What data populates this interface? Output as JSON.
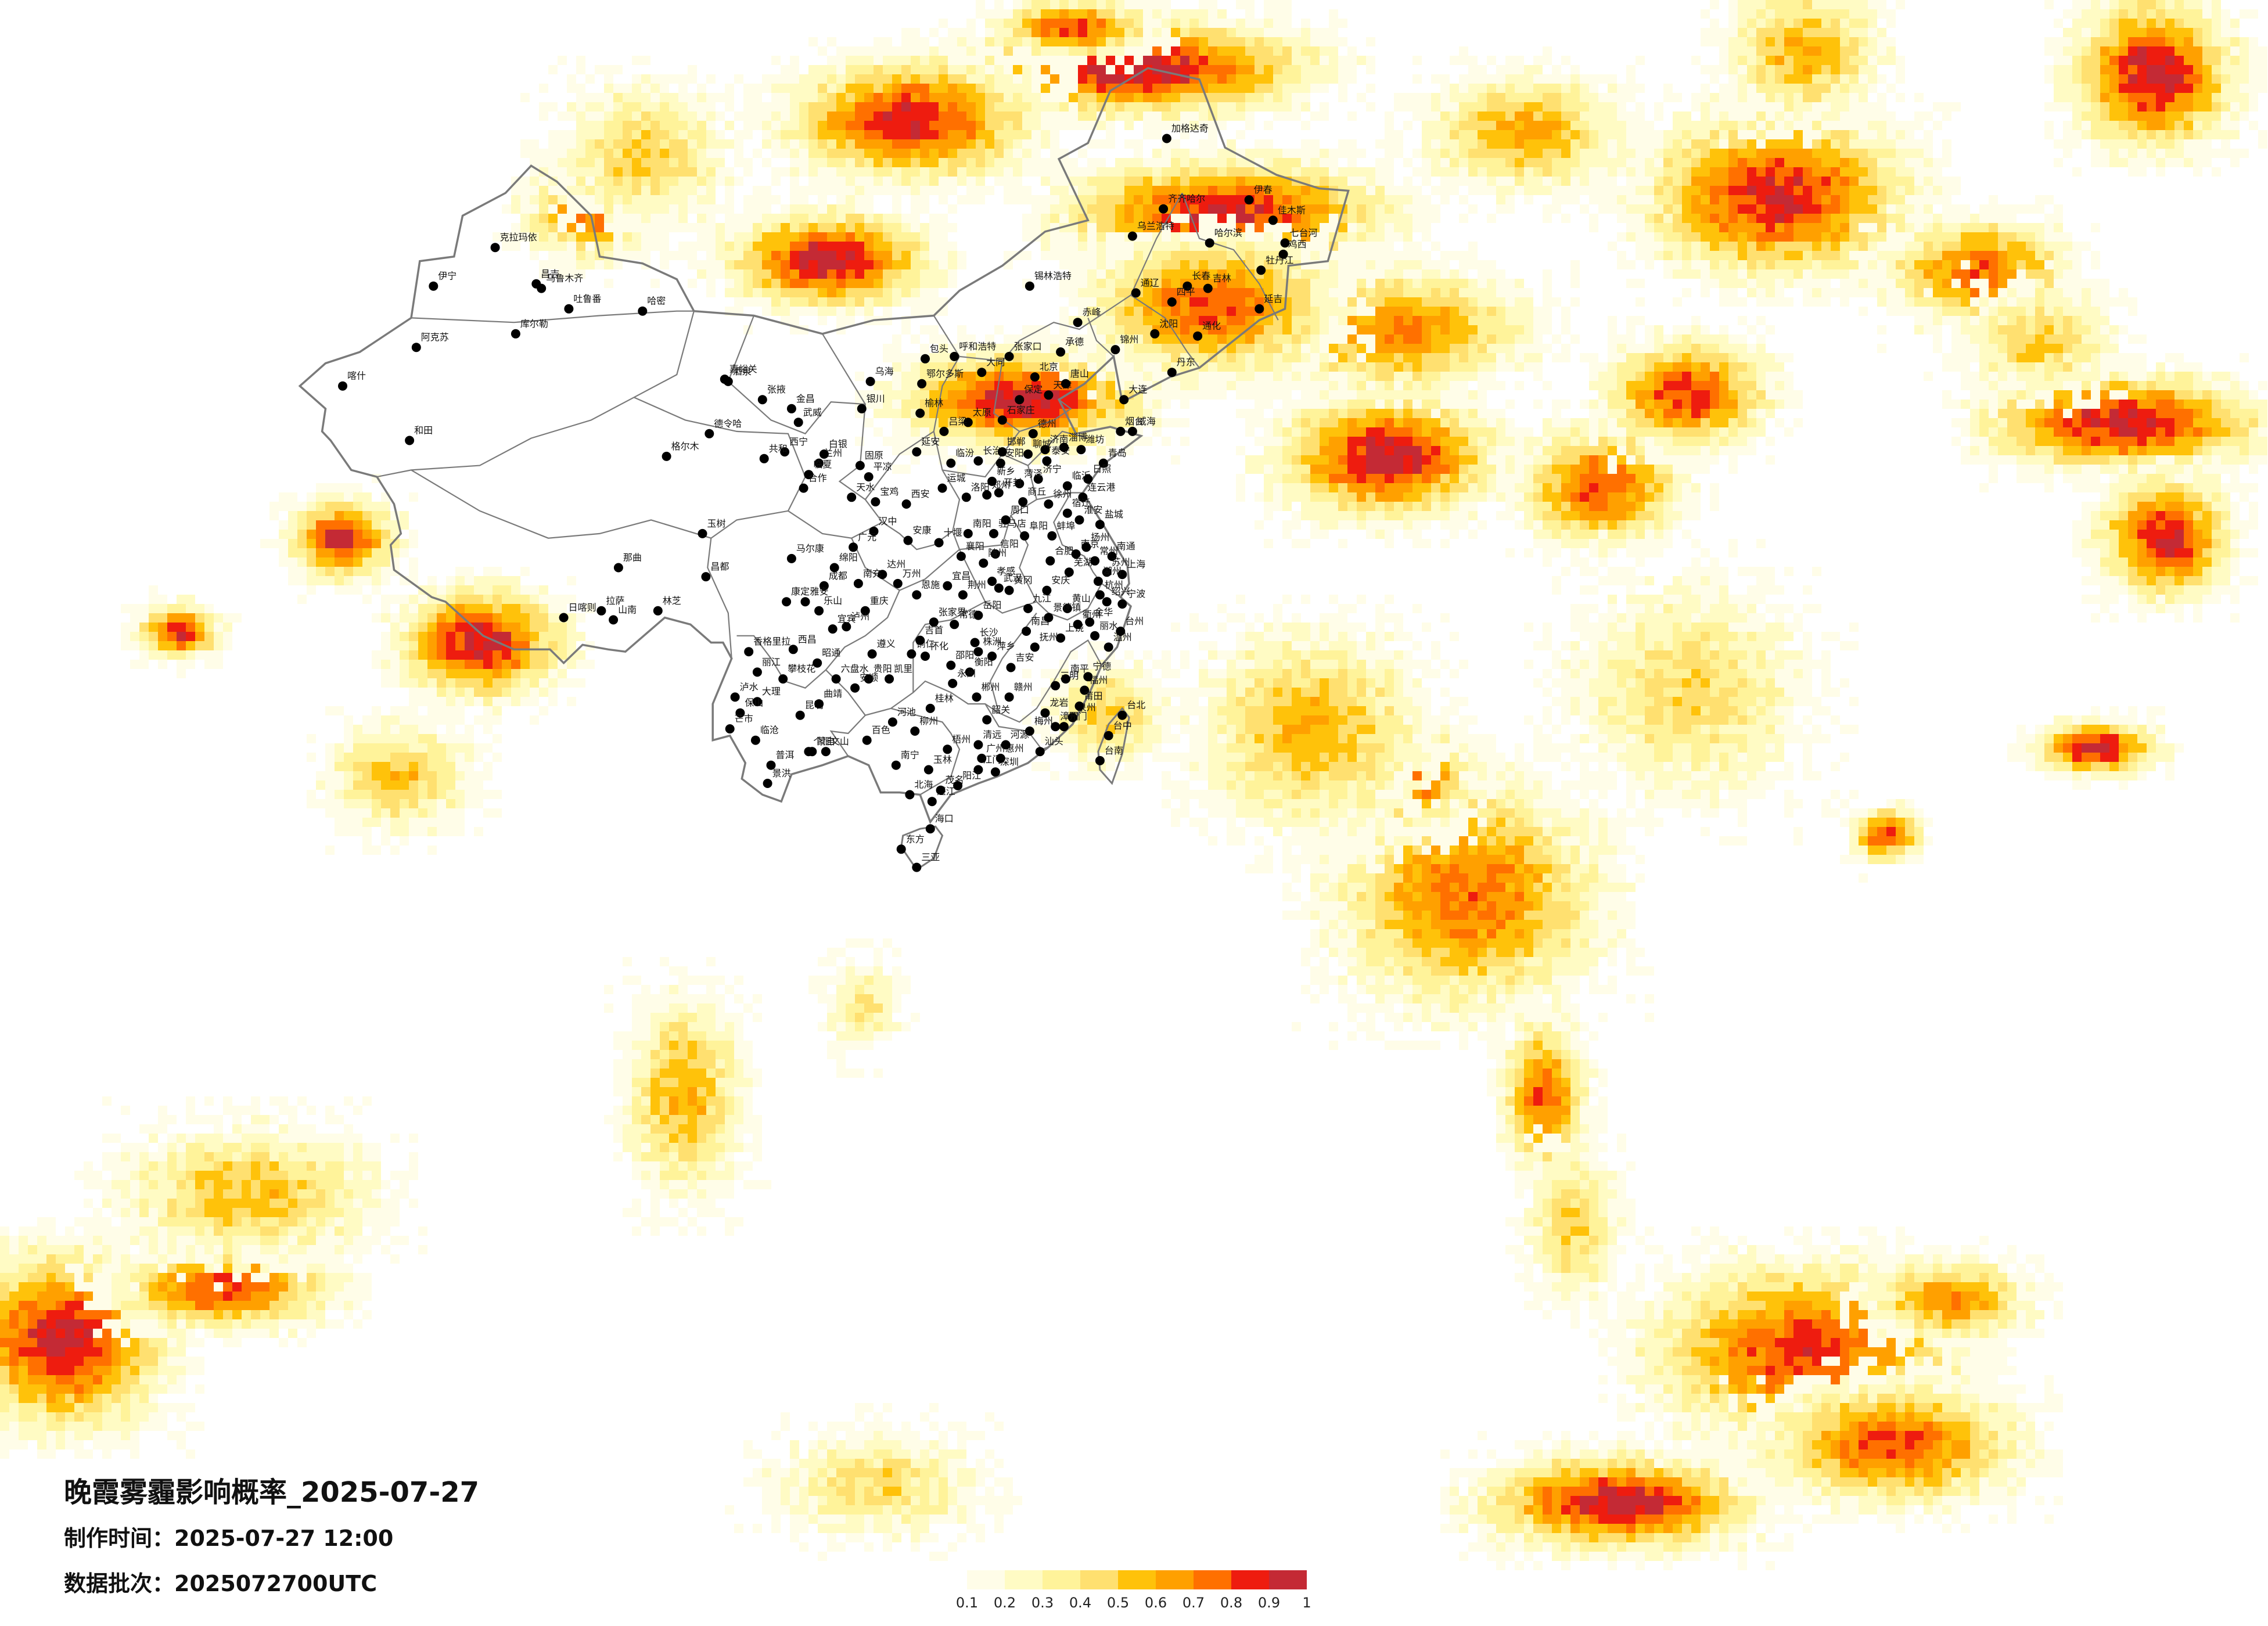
{
  "title": "晚霞雾霾影响概率_2025-07-27",
  "info": {
    "made_label": "制作时间：",
    "made_value": "2025-07-27 12:00",
    "batch_label": "数据批次：",
    "batch_value": "2025072700UTC"
  },
  "legend": {
    "colors": [
      "#fffde8",
      "#fffbc4",
      "#fff39a",
      "#ffe070",
      "#ffc20a",
      "#ffa000",
      "#ff7000",
      "#ee1c0f",
      "#c42a35"
    ],
    "ticks": [
      "0.1",
      "0.2",
      "0.3",
      "0.4",
      "0.5",
      "0.6",
      "0.7",
      "0.8",
      "0.9",
      "1"
    ]
  },
  "cities": [
    {
      "name": "克拉玛依",
      "lon": 84.9,
      "lat": 45.6
    },
    {
      "name": "伊宁",
      "lon": 81.3,
      "lat": 43.9
    },
    {
      "name": "昌吉",
      "lon": 87.3,
      "lat": 44.0
    },
    {
      "name": "乌鲁木齐",
      "lon": 87.6,
      "lat": 43.8
    },
    {
      "name": "吐鲁番",
      "lon": 89.2,
      "lat": 42.9
    },
    {
      "name": "哈密",
      "lon": 93.5,
      "lat": 42.8
    },
    {
      "name": "库尔勒",
      "lon": 86.1,
      "lat": 41.8
    },
    {
      "name": "阿克苏",
      "lon": 80.3,
      "lat": 41.2
    },
    {
      "name": "喀什",
      "lon": 76.0,
      "lat": 39.5
    },
    {
      "name": "和田",
      "lon": 79.9,
      "lat": 37.1
    },
    {
      "name": "嘉峪关",
      "lon": 98.3,
      "lat": 39.8
    },
    {
      "name": "酒泉",
      "lon": 98.5,
      "lat": 39.7
    },
    {
      "name": "张掖",
      "lon": 100.5,
      "lat": 38.9
    },
    {
      "name": "金昌",
      "lon": 102.2,
      "lat": 38.5
    },
    {
      "name": "武威",
      "lon": 102.6,
      "lat": 37.9
    },
    {
      "name": "西宁",
      "lon": 101.8,
      "lat": 36.6
    },
    {
      "name": "兰州",
      "lon": 103.8,
      "lat": 36.1
    },
    {
      "name": "德令哈",
      "lon": 97.4,
      "lat": 37.4
    },
    {
      "name": "共和",
      "lon": 100.6,
      "lat": 36.3
    },
    {
      "name": "玉树",
      "lon": 97.0,
      "lat": 33.0
    },
    {
      "name": "那曲",
      "lon": 92.1,
      "lat": 31.5
    },
    {
      "name": "日喀则",
      "lon": 88.9,
      "lat": 29.3
    },
    {
      "name": "拉萨",
      "lon": 91.1,
      "lat": 29.6
    },
    {
      "name": "山南",
      "lon": 91.8,
      "lat": 29.2
    },
    {
      "name": "林芝",
      "lon": 94.4,
      "lat": 29.6
    },
    {
      "name": "昌都",
      "lon": 97.2,
      "lat": 31.1
    },
    {
      "name": "银川",
      "lon": 106.3,
      "lat": 38.5
    },
    {
      "name": "乌海",
      "lon": 106.8,
      "lat": 39.7
    },
    {
      "name": "呼和浩特",
      "lon": 111.7,
      "lat": 40.8
    },
    {
      "name": "包头",
      "lon": 110.0,
      "lat": 40.7
    },
    {
      "name": "鄂尔多斯",
      "lon": 109.8,
      "lat": 39.6
    },
    {
      "name": "锡林浩特",
      "lon": 116.1,
      "lat": 43.9
    },
    {
      "name": "通辽",
      "lon": 122.3,
      "lat": 43.6
    },
    {
      "name": "乌兰浩特",
      "lon": 122.1,
      "lat": 46.1
    },
    {
      "name": "加格达奇",
      "lon": 124.1,
      "lat": 50.4
    },
    {
      "name": "齐齐哈尔",
      "lon": 123.9,
      "lat": 47.3
    },
    {
      "name": "哈尔滨",
      "lon": 126.6,
      "lat": 45.8
    },
    {
      "name": "佳木斯",
      "lon": 130.3,
      "lat": 46.8
    },
    {
      "name": "七台河",
      "lon": 131.0,
      "lat": 45.8
    },
    {
      "name": "牡丹江",
      "lon": 129.6,
      "lat": 44.6
    },
    {
      "name": "长春",
      "lon": 125.3,
      "lat": 43.9
    },
    {
      "name": "吉林",
      "lon": 126.5,
      "lat": 43.8
    },
    {
      "name": "沈阳",
      "lon": 123.4,
      "lat": 41.8
    },
    {
      "name": "大连",
      "lon": 121.6,
      "lat": 38.9
    },
    {
      "name": "北京",
      "lon": 116.4,
      "lat": 39.9
    },
    {
      "name": "天津",
      "lon": 117.2,
      "lat": 39.1
    },
    {
      "name": "石家庄",
      "lon": 114.5,
      "lat": 38.0
    },
    {
      "name": "太原",
      "lon": 112.5,
      "lat": 37.9
    },
    {
      "name": "济南",
      "lon": 117.0,
      "lat": 36.7
    },
    {
      "name": "青岛",
      "lon": 120.4,
      "lat": 36.1
    },
    {
      "name": "烟台",
      "lon": 121.4,
      "lat": 37.5
    },
    {
      "name": "郑州",
      "lon": 113.6,
      "lat": 34.7
    },
    {
      "name": "西安",
      "lon": 108.9,
      "lat": 34.3
    },
    {
      "name": "延安",
      "lon": 109.5,
      "lat": 36.6
    },
    {
      "name": "合肥",
      "lon": 117.3,
      "lat": 31.8
    },
    {
      "name": "南京",
      "lon": 118.8,
      "lat": 32.1
    },
    {
      "name": "上海",
      "lon": 121.5,
      "lat": 31.2
    },
    {
      "name": "杭州",
      "lon": 120.2,
      "lat": 30.3
    },
    {
      "name": "宁波",
      "lon": 121.5,
      "lat": 29.9
    },
    {
      "name": "武汉",
      "lon": 114.3,
      "lat": 30.6
    },
    {
      "name": "长沙",
      "lon": 112.9,
      "lat": 28.2
    },
    {
      "name": "南昌",
      "lon": 115.9,
      "lat": 28.7
    },
    {
      "name": "福州",
      "lon": 119.3,
      "lat": 26.1
    },
    {
      "name": "厦门",
      "lon": 118.1,
      "lat": 24.5
    },
    {
      "name": "台北",
      "lon": 121.5,
      "lat": 25.0
    },
    {
      "name": "台中",
      "lon": 120.7,
      "lat": 24.1
    },
    {
      "name": "台南",
      "lon": 120.2,
      "lat": 23.0
    },
    {
      "name": "广州",
      "lon": 113.3,
      "lat": 23.1
    },
    {
      "name": "深圳",
      "lon": 114.1,
      "lat": 22.5
    },
    {
      "name": "南宁",
      "lon": 108.3,
      "lat": 22.8
    },
    {
      "name": "海口",
      "lon": 110.3,
      "lat": 20.0
    },
    {
      "name": "三亚",
      "lon": 109.5,
      "lat": 18.3
    },
    {
      "name": "贵阳",
      "lon": 106.7,
      "lat": 26.6
    },
    {
      "name": "昆明",
      "lon": 102.7,
      "lat": 25.0
    },
    {
      "name": "大理",
      "lon": 100.2,
      "lat": 25.6
    },
    {
      "name": "丽江",
      "lon": 100.2,
      "lat": 26.9
    },
    {
      "name": "成都",
      "lon": 104.1,
      "lat": 30.7
    },
    {
      "name": "重庆",
      "lon": 106.5,
      "lat": 29.6
    },
    {
      "name": "绵阳",
      "lon": 104.7,
      "lat": 31.5
    },
    {
      "name": "雅安",
      "lon": 103.0,
      "lat": 30.0
    },
    {
      "name": "宜宾",
      "lon": 104.6,
      "lat": 28.8
    },
    {
      "name": "遵义",
      "lon": 106.9,
      "lat": 27.7
    },
    {
      "name": "桂林",
      "lon": 110.3,
      "lat": 25.3
    },
    {
      "name": "柳州",
      "lon": 109.4,
      "lat": 24.3
    },
    {
      "name": "赣州",
      "lon": 114.9,
      "lat": 25.8
    },
    {
      "name": "九江",
      "lon": 116.0,
      "lat": 29.7
    },
    {
      "name": "徐州",
      "lon": 117.2,
      "lat": 34.3
    },
    {
      "name": "临沂",
      "lon": 118.3,
      "lat": 35.1
    },
    {
      "name": "连云港",
      "lon": 119.2,
      "lat": 34.6
    },
    {
      "name": "洛阳",
      "lon": 112.4,
      "lat": 34.6
    },
    {
      "name": "汉中",
      "lon": 107.0,
      "lat": 33.1
    },
    {
      "name": "宝鸡",
      "lon": 107.1,
      "lat": 34.4
    },
    {
      "name": "天水",
      "lon": 105.7,
      "lat": 34.6
    },
    {
      "name": "张家口",
      "lon": 114.9,
      "lat": 40.8
    },
    {
      "name": "大同",
      "lon": 113.3,
      "lat": 40.1
    },
    {
      "name": "丹东",
      "lon": 124.4,
      "lat": 40.1
    },
    {
      "name": "长治",
      "lon": 113.1,
      "lat": 36.2
    },
    {
      "name": "温州",
      "lon": 120.7,
      "lat": 28.0
    },
    {
      "name": "泉州",
      "lon": 118.6,
      "lat": 24.9
    },
    {
      "name": "汕头",
      "lon": 116.7,
      "lat": 23.4
    },
    {
      "name": "湛江",
      "lon": 110.4,
      "lat": 21.2
    },
    {
      "name": "北海",
      "lon": 109.1,
      "lat": 21.5
    },
    {
      "name": "百色",
      "lon": 106.6,
      "lat": 23.9
    },
    {
      "name": "曲靖",
      "lon": 103.8,
      "lat": 25.5
    },
    {
      "name": "蒙自",
      "lon": 103.4,
      "lat": 23.4
    },
    {
      "name": "景洪",
      "lon": 100.8,
      "lat": 22.0
    },
    {
      "name": "普洱",
      "lon": 101.0,
      "lat": 22.8
    },
    {
      "name": "保山",
      "lon": 99.2,
      "lat": 25.1
    },
    {
      "name": "攀枝花",
      "lon": 101.7,
      "lat": 26.6
    },
    {
      "name": "西昌",
      "lon": 102.3,
      "lat": 27.9
    },
    {
      "name": "怀化",
      "lon": 110.0,
      "lat": 27.6
    },
    {
      "name": "衡阳",
      "lon": 112.6,
      "lat": 26.9
    },
    {
      "name": "常德",
      "lon": 111.7,
      "lat": 29.0
    },
    {
      "name": "宜昌",
      "lon": 111.3,
      "lat": 30.7
    },
    {
      "name": "襄阳",
      "lon": 112.1,
      "lat": 32.0
    },
    {
      "name": "信阳",
      "lon": 114.1,
      "lat": 32.1
    },
    {
      "name": "阜阳",
      "lon": 115.8,
      "lat": 32.9
    },
    {
      "name": "蚌埠",
      "lon": 117.4,
      "lat": 32.9
    },
    {
      "name": "芜湖",
      "lon": 118.4,
      "lat": 31.3
    },
    {
      "name": "金华",
      "lon": 119.6,
      "lat": 29.1
    },
    {
      "name": "上饶",
      "lon": 117.9,
      "lat": 28.4
    },
    {
      "name": "三明",
      "lon": 117.6,
      "lat": 26.3
    },
    {
      "name": "南平",
      "lon": 118.2,
      "lat": 26.6
    },
    {
      "name": "龙岩",
      "lon": 117.0,
      "lat": 25.1
    },
    {
      "name": "梅州",
      "lon": 116.1,
      "lat": 24.3
    },
    {
      "name": "韶关",
      "lon": 113.6,
      "lat": 24.8
    },
    {
      "name": "清远",
      "lon": 113.1,
      "lat": 23.7
    },
    {
      "name": "江门",
      "lon": 113.1,
      "lat": 22.6
    },
    {
      "name": "茂名",
      "lon": 110.9,
      "lat": 21.7
    },
    {
      "name": "玉林",
      "lon": 110.2,
      "lat": 22.6
    },
    {
      "name": "梧州",
      "lon": 111.3,
      "lat": 23.5
    },
    {
      "name": "河池",
      "lon": 108.1,
      "lat": 24.7
    },
    {
      "name": "六盘水",
      "lon": 104.8,
      "lat": 26.6
    },
    {
      "name": "安顺",
      "lon": 105.9,
      "lat": 26.2
    },
    {
      "name": "凯里",
      "lon": 107.9,
      "lat": 26.6
    },
    {
      "name": "铜仁",
      "lon": 109.2,
      "lat": 27.7
    },
    {
      "name": "恩施",
      "lon": 109.5,
      "lat": 30.3
    },
    {
      "name": "达州",
      "lon": 107.5,
      "lat": 31.2
    },
    {
      "name": "南充",
      "lon": 106.1,
      "lat": 30.8
    },
    {
      "name": "广元",
      "lon": 105.8,
      "lat": 32.4
    },
    {
      "name": "马尔康",
      "lon": 102.2,
      "lat": 31.9
    },
    {
      "name": "康定",
      "lon": 101.9,
      "lat": 30.0
    },
    {
      "name": "平凉",
      "lon": 106.7,
      "lat": 35.5
    },
    {
      "name": "固原",
      "lon": 106.2,
      "lat": 36.0
    },
    {
      "name": "白银",
      "lon": 104.1,
      "lat": 36.5
    },
    {
      "name": "临夏",
      "lon": 103.2,
      "lat": 35.6
    },
    {
      "name": "合作",
      "lon": 102.9,
      "lat": 35.0
    },
    {
      "name": "格尔木",
      "lon": 94.9,
      "lat": 36.4
    },
    {
      "name": "榆林",
      "lon": 109.7,
      "lat": 38.3
    },
    {
      "name": "吕梁",
      "lon": 111.1,
      "lat": 37.5
    },
    {
      "name": "临汾",
      "lon": 111.5,
      "lat": 36.1
    },
    {
      "name": "运城",
      "lon": 111.0,
      "lat": 35.0
    },
    {
      "name": "邯郸",
      "lon": 114.5,
      "lat": 36.6
    },
    {
      "name": "保定",
      "lon": 115.5,
      "lat": 38.9
    },
    {
      "name": "唐山",
      "lon": 118.2,
      "lat": 39.6
    },
    {
      "name": "承德",
      "lon": 117.9,
      "lat": 41.0
    },
    {
      "name": "赤峰",
      "lon": 118.9,
      "lat": 42.3
    },
    {
      "name": "锦州",
      "lon": 121.1,
      "lat": 41.1
    },
    {
      "name": "四平",
      "lon": 124.4,
      "lat": 43.2
    },
    {
      "name": "通化",
      "lon": 125.9,
      "lat": 41.7
    },
    {
      "name": "延吉",
      "lon": 129.5,
      "lat": 42.9
    },
    {
      "name": "伊春",
      "lon": 128.9,
      "lat": 47.7
    },
    {
      "name": "鸡西",
      "lon": 130.9,
      "lat": 45.3
    },
    {
      "name": "德州",
      "lon": 116.3,
      "lat": 37.4
    },
    {
      "name": "潍坊",
      "lon": 119.1,
      "lat": 36.7
    },
    {
      "name": "威海",
      "lon": 122.1,
      "lat": 37.5
    },
    {
      "name": "济宁",
      "lon": 116.6,
      "lat": 35.4
    },
    {
      "name": "菏泽",
      "lon": 115.5,
      "lat": 35.2
    },
    {
      "name": "商丘",
      "lon": 115.7,
      "lat": 34.4
    },
    {
      "name": "南阳",
      "lon": 112.5,
      "lat": 33.0
    },
    {
      "name": "盐城",
      "lon": 120.2,
      "lat": 33.4
    },
    {
      "name": "南通",
      "lon": 120.9,
      "lat": 32.0
    },
    {
      "name": "苏州",
      "lon": 120.6,
      "lat": 31.3
    },
    {
      "name": "安庆",
      "lon": 117.1,
      "lat": 30.5
    },
    {
      "name": "黄山",
      "lon": 118.3,
      "lat": 29.7
    },
    {
      "name": "吉安",
      "lon": 115.0,
      "lat": 27.1
    },
    {
      "name": "永州",
      "lon": 111.6,
      "lat": 26.4
    },
    {
      "name": "郴州",
      "lon": 113.0,
      "lat": 25.8
    },
    {
      "name": "岳阳",
      "lon": 113.1,
      "lat": 29.4
    },
    {
      "name": "荆州",
      "lon": 112.2,
      "lat": 30.3
    },
    {
      "name": "十堰",
      "lon": 110.8,
      "lat": 32.6
    },
    {
      "name": "安康",
      "lon": 109.0,
      "lat": 32.7
    },
    {
      "name": "万州",
      "lon": 108.4,
      "lat": 30.8
    },
    {
      "name": "泸州",
      "lon": 105.4,
      "lat": 28.9
    },
    {
      "name": "乐山",
      "lon": 103.8,
      "lat": 29.6
    },
    {
      "name": "昭通",
      "lon": 103.7,
      "lat": 27.3
    },
    {
      "name": "文山",
      "lon": 104.2,
      "lat": 23.4
    },
    {
      "name": "个旧",
      "lon": 103.2,
      "lat": 23.4
    },
    {
      "name": "临沧",
      "lon": 100.1,
      "lat": 23.9
    },
    {
      "name": "芒市",
      "lon": 98.6,
      "lat": 24.4
    },
    {
      "name": "泸水",
      "lon": 98.9,
      "lat": 25.8
    },
    {
      "name": "香格里拉",
      "lon": 99.7,
      "lat": 27.8
    },
    {
      "name": "东方",
      "lon": 108.6,
      "lat": 19.1
    },
    {
      "name": "阳江",
      "lon": 111.9,
      "lat": 21.9
    },
    {
      "name": "惠州",
      "lon": 114.4,
      "lat": 23.1
    },
    {
      "name": "河源",
      "lon": 114.7,
      "lat": 23.7
    },
    {
      "name": "漳州",
      "lon": 117.6,
      "lat": 24.5
    },
    {
      "name": "莆田",
      "lon": 119.0,
      "lat": 25.4
    },
    {
      "name": "宁德",
      "lon": 119.5,
      "lat": 26.7
    },
    {
      "name": "丽水",
      "lon": 119.9,
      "lat": 28.5
    },
    {
      "name": "衢州",
      "lon": 118.9,
      "lat": 29.0
    },
    {
      "name": "景德镇",
      "lon": 117.2,
      "lat": 29.3
    },
    {
      "name": "抚州",
      "lon": 116.4,
      "lat": 28.0
    },
    {
      "name": "萍乡",
      "lon": 113.9,
      "lat": 27.6
    },
    {
      "name": "株洲",
      "lon": 113.1,
      "lat": 27.8
    },
    {
      "name": "邵阳",
      "lon": 111.5,
      "lat": 27.2
    },
    {
      "name": "吉首",
      "lon": 109.7,
      "lat": 28.3
    },
    {
      "name": "张家界",
      "lon": 110.5,
      "lat": 29.1
    },
    {
      "name": "黄冈",
      "lon": 114.9,
      "lat": 30.5
    },
    {
      "name": "孝感",
      "lon": 113.9,
      "lat": 30.9
    },
    {
      "name": "随州",
      "lon": 113.4,
      "lat": 31.7
    },
    {
      "name": "驻马店",
      "lon": 114.0,
      "lat": 33.0
    },
    {
      "name": "周口",
      "lon": 114.7,
      "lat": 33.6
    },
    {
      "name": "开封",
      "lon": 114.3,
      "lat": 34.8
    },
    {
      "name": "新乡",
      "lon": 113.9,
      "lat": 35.3
    },
    {
      "name": "安阳",
      "lon": 114.4,
      "lat": 36.1
    },
    {
      "name": "聊城",
      "lon": 116.0,
      "lat": 36.5
    },
    {
      "name": "泰安",
      "lon": 117.1,
      "lat": 36.2
    },
    {
      "name": "淄博",
      "lon": 118.1,
      "lat": 36.8
    },
    {
      "name": "日照",
      "lon": 119.5,
      "lat": 35.4
    },
    {
      "name": "宿迁",
      "lon": 118.3,
      "lat": 33.9
    },
    {
      "name": "淮安",
      "lon": 119.0,
      "lat": 33.6
    },
    {
      "name": "扬州",
      "lon": 119.4,
      "lat": 32.4
    },
    {
      "name": "常州",
      "lon": 119.9,
      "lat": 31.8
    },
    {
      "name": "湖州",
      "lon": 120.1,
      "lat": 30.9
    },
    {
      "name": "绍兴",
      "lon": 120.6,
      "lat": 30.0
    },
    {
      "name": "台州",
      "lon": 121.4,
      "lat": 28.7
    }
  ]
}
